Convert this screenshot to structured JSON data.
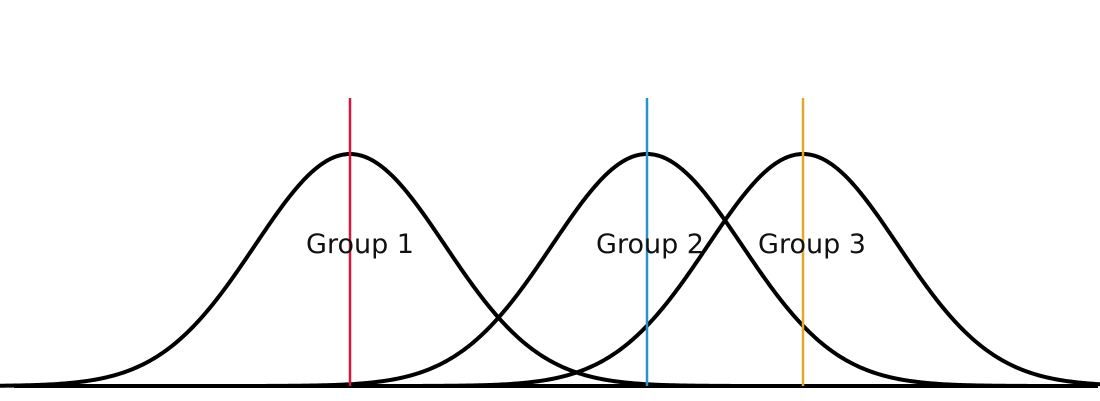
{
  "groups": [
    {
      "label": "Group 1",
      "mean_line_color": "#d6183d"
    },
    {
      "label": "Group 2",
      "mean_line_color": "#2a93c9"
    },
    {
      "label": "Group 3",
      "mean_line_color": "#e0a82e"
    }
  ],
  "curve_color": "#000000",
  "baseline_color": "#000000"
}
